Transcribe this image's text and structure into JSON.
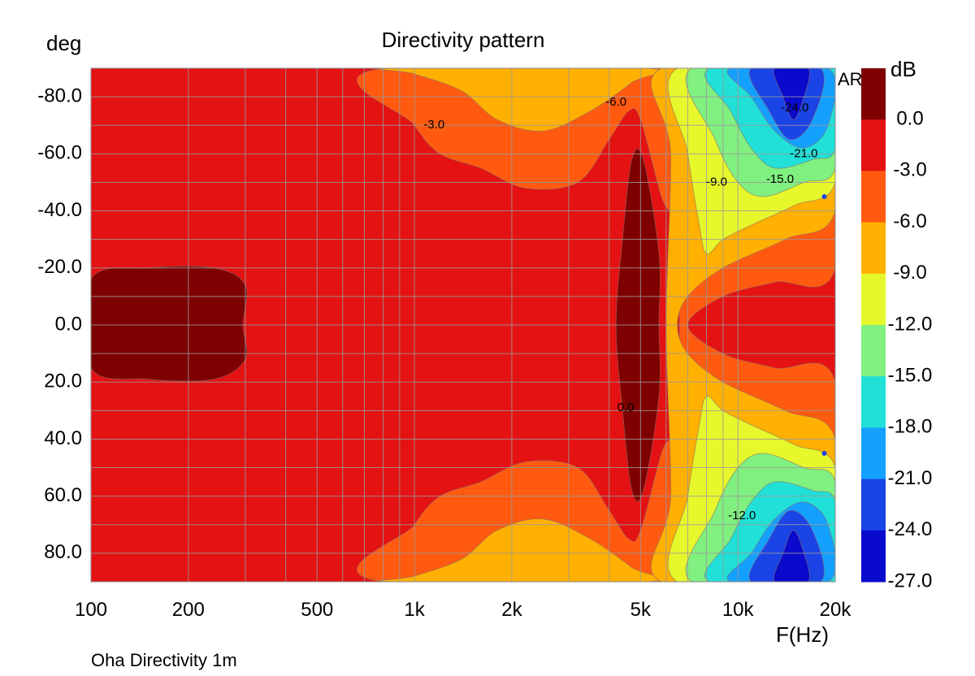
{
  "chart_data": {
    "type": "heatmap",
    "title": "Directivity pattern",
    "subtitle": "",
    "ylabel": "deg",
    "xlabel": "F(Hz)",
    "footer": "Oha Directivity 1m",
    "watermark": "ARTA",
    "x_scale": "log",
    "xlim": [
      100,
      20000
    ],
    "ylim": [
      -90,
      90
    ],
    "y_inverted": true,
    "grid": true,
    "x_ticks": [
      {
        "value": 100,
        "label": "100"
      },
      {
        "value": 200,
        "label": "200"
      },
      {
        "value": 500,
        "label": "500"
      },
      {
        "value": 1000,
        "label": "1k"
      },
      {
        "value": 2000,
        "label": "2k"
      },
      {
        "value": 5000,
        "label": "5k"
      },
      {
        "value": 10000,
        "label": "10k"
      },
      {
        "value": 20000,
        "label": "20k"
      }
    ],
    "y_ticks": [
      {
        "value": -80,
        "label": "-80.0"
      },
      {
        "value": -60,
        "label": "-60.0"
      },
      {
        "value": -40,
        "label": "-40.0"
      },
      {
        "value": -20,
        "label": "-20.0"
      },
      {
        "value": 0,
        "label": "0.0"
      },
      {
        "value": 20,
        "label": "20.0"
      },
      {
        "value": 40,
        "label": "40.0"
      },
      {
        "value": 60,
        "label": "60.0"
      },
      {
        "value": 80,
        "label": "80.0"
      }
    ],
    "colorbar": {
      "title": "dB",
      "levels": [
        {
          "range": [
            0,
            3
          ],
          "color": "#7f0000"
        },
        {
          "range": [
            -3,
            0
          ],
          "color": "#e41212"
        },
        {
          "range": [
            -6,
            -3
          ],
          "color": "#ff5a10"
        },
        {
          "range": [
            -9,
            -6
          ],
          "color": "#ffb000"
        },
        {
          "range": [
            -12,
            -9
          ],
          "color": "#e6f82c"
        },
        {
          "range": [
            -15,
            -12
          ],
          "color": "#80f080"
        },
        {
          "range": [
            -18,
            -15
          ],
          "color": "#20e0d8"
        },
        {
          "range": [
            -21,
            -18
          ],
          "color": "#14a0ff"
        },
        {
          "range": [
            -24,
            -21
          ],
          "color": "#1a44e6"
        },
        {
          "range": [
            -27,
            -24
          ],
          "color": "#0a0acc"
        }
      ],
      "tick_labels": [
        "0.0",
        "-3.0",
        "-6.0",
        "-9.0",
        "-12.0",
        "-15.0",
        "-18.0",
        "-21.0",
        "-24.0",
        "-27.0"
      ]
    },
    "contours": [
      {
        "level": 0,
        "color": "#7f0000",
        "regions": [
          [
            [
              100,
              -16
            ],
            [
              150,
              -20
            ],
            [
              240,
              -20
            ],
            [
              300,
              -14
            ],
            [
              295,
              0
            ],
            [
              300,
              12
            ],
            [
              240,
              19
            ],
            [
              150,
              19
            ],
            [
              100,
              15
            ]
          ],
          [
            [
              4400,
              -30
            ],
            [
              4700,
              -58
            ],
            [
              5100,
              -58
            ],
            [
              5700,
              -25
            ],
            [
              5700,
              0
            ],
            [
              5700,
              25
            ],
            [
              5100,
              58
            ],
            [
              4700,
              58
            ],
            [
              4400,
              30
            ],
            [
              4200,
              0
            ]
          ]
        ]
      },
      {
        "level": -6,
        "color": "#ffb000",
        "regions": [
          [
            [
              860,
              -90
            ],
            [
              5200,
              -90
            ],
            [
              4700,
              -85
            ],
            [
              3500,
              -75
            ],
            [
              2500,
              -68
            ],
            [
              1800,
              -72
            ],
            [
              1400,
              -82
            ],
            [
              1000,
              -88
            ]
          ],
          [
            [
              860,
              90
            ],
            [
              1000,
              88
            ],
            [
              1400,
              82
            ],
            [
              1800,
              72
            ],
            [
              2500,
              68
            ],
            [
              3500,
              75
            ],
            [
              4700,
              85
            ],
            [
              5200,
              90
            ]
          ],
          [
            [
              5800,
              -90
            ],
            [
              20000,
              -90
            ],
            [
              20000,
              -40
            ],
            [
              14000,
              -30
            ],
            [
              9000,
              -20
            ],
            [
              7000,
              -10
            ],
            [
              6500,
              0
            ],
            [
              7000,
              10
            ],
            [
              9000,
              20
            ],
            [
              14000,
              30
            ],
            [
              20000,
              40
            ],
            [
              20000,
              90
            ],
            [
              5800,
              90
            ],
            [
              6200,
              60
            ],
            [
              6000,
              0
            ],
            [
              6200,
              -60
            ]
          ]
        ]
      },
      {
        "level": -3,
        "color": "#ff5a10",
        "regions": [
          [
            [
              800,
              -90
            ],
            [
              20000,
              -90
            ],
            [
              20000,
              -20
            ],
            [
              13000,
              -15
            ],
            [
              9000,
              -10
            ],
            [
              7000,
              0
            ],
            [
              9000,
              10
            ],
            [
              13000,
              15
            ],
            [
              20000,
              20
            ],
            [
              20000,
              90
            ],
            [
              800,
              90
            ],
            [
              1000,
              70
            ],
            [
              1200,
              60
            ],
            [
              1600,
              55
            ],
            [
              2200,
              48
            ],
            [
              3200,
              50
            ],
            [
              4000,
              65
            ],
            [
              4600,
              75
            ],
            [
              5000,
              72
            ],
            [
              5800,
              45
            ],
            [
              6500,
              30
            ],
            [
              6500,
              -30
            ],
            [
              5800,
              -45
            ],
            [
              5000,
              -72
            ],
            [
              4600,
              -75
            ],
            [
              4000,
              -65
            ],
            [
              3200,
              -50
            ],
            [
              2200,
              -48
            ],
            [
              1600,
              -55
            ],
            [
              1200,
              -60
            ],
            [
              1000,
              -70
            ]
          ]
        ]
      },
      {
        "level": -9,
        "color": "#e6f82c",
        "regions": [
          [
            [
              6500,
              -90
            ],
            [
              20000,
              -90
            ],
            [
              20000,
              -50
            ],
            [
              15000,
              -42
            ],
            [
              11000,
              -35
            ],
            [
              9000,
              -30
            ],
            [
              8000,
              -25
            ],
            [
              7600,
              -35
            ],
            [
              7000,
              -60
            ]
          ],
          [
            [
              6500,
              90
            ],
            [
              7000,
              60
            ],
            [
              7600,
              35
            ],
            [
              8000,
              25
            ],
            [
              9000,
              30
            ],
            [
              11000,
              35
            ],
            [
              15000,
              42
            ],
            [
              20000,
              50
            ],
            [
              20000,
              90
            ]
          ]
        ]
      },
      {
        "level": -12,
        "color": "#80f080",
        "regions": [
          [
            [
              7200,
              -90
            ],
            [
              20000,
              -90
            ],
            [
              20000,
              -55
            ],
            [
              16000,
              -50
            ],
            [
              12000,
              -45
            ],
            [
              10000,
              -50
            ],
            [
              8500,
              -65
            ]
          ],
          [
            [
              7200,
              90
            ],
            [
              8500,
              65
            ],
            [
              10000,
              50
            ],
            [
              12000,
              45
            ],
            [
              16000,
              50
            ],
            [
              20000,
              55
            ],
            [
              20000,
              90
            ]
          ]
        ]
      },
      {
        "level": -15,
        "color": "#20e0d8",
        "regions": [
          [
            [
              8200,
              -90
            ],
            [
              20000,
              -90
            ],
            [
              20000,
              -62
            ],
            [
              17000,
              -58
            ],
            [
              13000,
              -55
            ],
            [
              11000,
              -62
            ],
            [
              9500,
              -75
            ]
          ],
          [
            [
              8200,
              90
            ],
            [
              9500,
              75
            ],
            [
              11000,
              62
            ],
            [
              13000,
              55
            ],
            [
              17000,
              58
            ],
            [
              20000,
              62
            ],
            [
              20000,
              90
            ]
          ]
        ]
      },
      {
        "level": -18,
        "color": "#14a0ff",
        "regions": [
          [
            [
              9500,
              -90
            ],
            [
              19000,
              -90
            ],
            [
              19000,
              -70
            ],
            [
              16000,
              -62
            ],
            [
              13000,
              -68
            ],
            [
              11000,
              -80
            ]
          ],
          [
            [
              9500,
              90
            ],
            [
              11000,
              80
            ],
            [
              13000,
              68
            ],
            [
              16000,
              62
            ],
            [
              19000,
              70
            ],
            [
              19000,
              90
            ]
          ]
        ]
      },
      {
        "level": -21,
        "color": "#1a44e6",
        "regions": [
          [
            [
              11000,
              -90
            ],
            [
              18000,
              -90
            ],
            [
              17000,
              -72
            ],
            [
              14500,
              -65
            ],
            [
              12500,
              -75
            ]
          ],
          [
            [
              11000,
              90
            ],
            [
              12500,
              75
            ],
            [
              14500,
              65
            ],
            [
              17000,
              72
            ],
            [
              18000,
              90
            ]
          ]
        ]
      },
      {
        "level": -24,
        "color": "#0a0acc",
        "regions": [
          [
            [
              13000,
              -90
            ],
            [
              16500,
              -90
            ],
            [
              15800,
              -78
            ],
            [
              14800,
              -72
            ],
            [
              13800,
              -80
            ]
          ],
          [
            [
              13000,
              90
            ],
            [
              13800,
              80
            ],
            [
              14800,
              72
            ],
            [
              15800,
              78
            ],
            [
              16500,
              90
            ]
          ]
        ]
      }
    ],
    "contour_labels": [
      {
        "text": "-3.0",
        "x": 1150,
        "y": -70
      },
      {
        "text": "-6.0",
        "x": 4200,
        "y": -78
      },
      {
        "text": "-24.0",
        "x": 15000,
        "y": -76
      },
      {
        "text": "-21.0",
        "x": 16000,
        "y": -60
      },
      {
        "text": "-9.0",
        "x": 8600,
        "y": -50
      },
      {
        "text": "-15.0",
        "x": 13500,
        "y": -51
      },
      {
        "text": "0.0",
        "x": 4500,
        "y": 29
      },
      {
        "text": "-12.0",
        "x": 10300,
        "y": 67
      }
    ],
    "markers": [
      {
        "x": 18500,
        "y": -45
      },
      {
        "x": 18500,
        "y": 45
      }
    ]
  }
}
